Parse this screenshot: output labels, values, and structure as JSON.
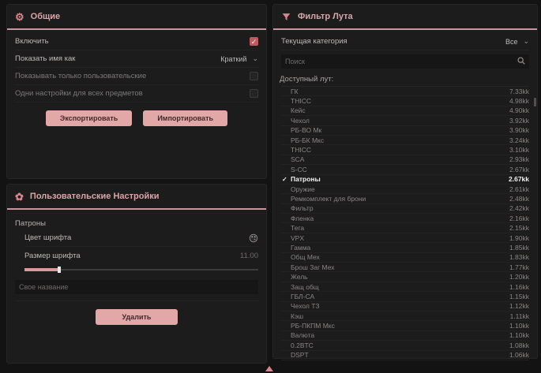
{
  "colors": {
    "accent": "#dba4a8",
    "button_bg": "#e2a7a7",
    "checkbox_checked": "#bf5a60",
    "panel_bg": "#1c1c1c",
    "page_bg": "#131313",
    "checked_row_text": "#f2f2f2"
  },
  "glyphs": {
    "check": "✓",
    "chevron_down": "⌄",
    "gear": "⚙",
    "flower": "✿"
  },
  "general_panel": {
    "title": "Общие",
    "enable_label": "Включить",
    "enable_checked": true,
    "name_mode_label": "Показать имя как",
    "name_mode_value": "Краткий",
    "only_custom_label": "Показывать только пользовательские",
    "only_custom_checked": false,
    "same_for_all_label": "Одни настройки для всех предметов",
    "same_for_all_checked": false,
    "export_label": "Экспортировать",
    "import_label": "Импортировать"
  },
  "custom_panel": {
    "title": "Пользовательские Настройки",
    "item_name": "Патроны",
    "font_color_label": "Цвет шрифта",
    "font_size_label": "Размер шрифта",
    "font_size_value": "11.00",
    "font_size_percent": 15,
    "custom_name_placeholder": "Свое название",
    "delete_label": "Удалить"
  },
  "loot_panel": {
    "title": "Фильтр Лута",
    "category_label": "Текущая категория",
    "category_value": "Все",
    "search_placeholder": "Поиск",
    "list_label": "Доступный лут:",
    "items": [
      {
        "name": "ГК",
        "value": "7.33kk",
        "checked": false
      },
      {
        "name": "THICC",
        "value": "4.98kk",
        "checked": false
      },
      {
        "name": "Кейс",
        "value": "4.90kk",
        "checked": false
      },
      {
        "name": "Чехол",
        "value": "3.92kk",
        "checked": false
      },
      {
        "name": "РБ-ВО Мк",
        "value": "3.90kk",
        "checked": false
      },
      {
        "name": "РБ-БК Мкс",
        "value": "3.24kk",
        "checked": false
      },
      {
        "name": "THICC",
        "value": "3.10kk",
        "checked": false
      },
      {
        "name": "SCA",
        "value": "2.93kk",
        "checked": false
      },
      {
        "name": "S-CC",
        "value": "2.67kk",
        "checked": false
      },
      {
        "name": "Патроны",
        "value": "2.67kk",
        "checked": true
      },
      {
        "name": "Оружие",
        "value": "2.61kk",
        "checked": false
      },
      {
        "name": "Ремкомплект для брони",
        "value": "2.48kk",
        "checked": false
      },
      {
        "name": "Фильтр",
        "value": "2.42kk",
        "checked": false
      },
      {
        "name": "Фленка",
        "value": "2.16kk",
        "checked": false
      },
      {
        "name": "Тега",
        "value": "2.15kk",
        "checked": false
      },
      {
        "name": "VPX",
        "value": "1.90kk",
        "checked": false
      },
      {
        "name": "Гамма",
        "value": "1.85kk",
        "checked": false
      },
      {
        "name": "Общ Мех",
        "value": "1.83kk",
        "checked": false
      },
      {
        "name": "Брош Заг Мех",
        "value": "1.77kk",
        "checked": false
      },
      {
        "name": "Жель",
        "value": "1.20kk",
        "checked": false
      },
      {
        "name": "Защ общ",
        "value": "1.16kk",
        "checked": false
      },
      {
        "name": "ГБЛ-СА",
        "value": "1.15kk",
        "checked": false
      },
      {
        "name": "Чехол ТЗ",
        "value": "1.12kk",
        "checked": false
      },
      {
        "name": "Кэш",
        "value": "1.11kk",
        "checked": false
      },
      {
        "name": "РБ-ПКПМ Мкс",
        "value": "1.10kk",
        "checked": false
      },
      {
        "name": "Валюта",
        "value": "1.10kk",
        "checked": false
      },
      {
        "name": "0.2BTC",
        "value": "1.08kk",
        "checked": false
      },
      {
        "name": "DSPT",
        "value": "1.06kk",
        "checked": false
      }
    ]
  }
}
